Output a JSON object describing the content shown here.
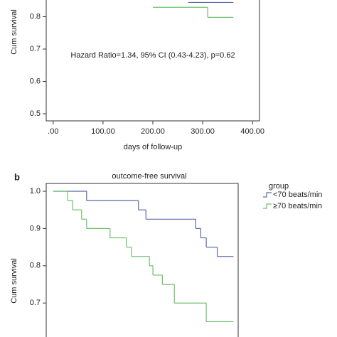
{
  "chart_data": [
    {
      "type": "line",
      "step": true,
      "y_label": "Cum survival",
      "x_label": "days of follow-up",
      "annotation": "Hazard Ratio=1.34, 95% CI (0.43-4.23), p=0.62",
      "xlim": [
        -14,
        414
      ],
      "ylim": [
        0.478,
        0.856
      ],
      "xticks": [
        {
          "value": 0,
          "label": ".00"
        },
        {
          "value": 100,
          "label": "100.00"
        },
        {
          "value": 200,
          "label": "200.00"
        },
        {
          "value": 300,
          "label": "300.00"
        },
        {
          "value": 400,
          "label": "400.00"
        }
      ],
      "yticks": [
        0.5,
        0.6,
        0.7,
        0.8
      ],
      "series": [
        {
          "name": "<70 beats/min",
          "color": "#5a6aa6",
          "x": [
            271,
            361
          ],
          "values": [
            0.844,
            0.844
          ]
        },
        {
          "name": "≥70 beats/min",
          "color": "#6cc06c",
          "x": [
            200,
            310,
            361
          ],
          "values": [
            0.829,
            0.798,
            0.798
          ]
        }
      ]
    },
    {
      "type": "line",
      "step": true,
      "panel": "b",
      "title": "outcome-free survival",
      "y_label": "Cum survival",
      "legend_title": "group",
      "xlim": [
        -14,
        371
      ],
      "ylim": [
        0.605,
        1.021
      ],
      "yticks": [
        {
          "value": 0.7,
          "label": "0.7"
        },
        {
          "value": 0.8,
          "label": "0.8"
        },
        {
          "value": 0.9,
          "label": "0.9"
        },
        {
          "value": 1.0,
          "label": "1.0"
        }
      ],
      "series": [
        {
          "name": "<70 beats/min",
          "color": "#5a6aa6",
          "x": [
            0,
            67,
            171,
            186,
            286,
            296,
            307,
            329,
            361
          ],
          "values": [
            1.0,
            0.975,
            0.95,
            0.925,
            0.9,
            0.875,
            0.85,
            0.825,
            0.825
          ]
        },
        {
          "name": "≥70 beats/min",
          "color": "#6cc06c",
          "x": [
            0,
            29,
            39,
            57,
            67,
            114,
            147,
            157,
            193,
            200,
            219,
            243,
            307,
            361
          ],
          "values": [
            1.0,
            0.975,
            0.95,
            0.925,
            0.9,
            0.875,
            0.85,
            0.825,
            0.8,
            0.775,
            0.75,
            0.7,
            0.65,
            0.65
          ]
        }
      ]
    }
  ]
}
